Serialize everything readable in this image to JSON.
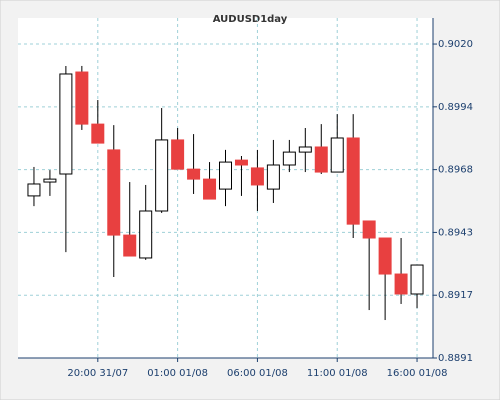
{
  "chart_data": {
    "type": "candlestick",
    "title": "AUDUSD1day",
    "categories": [
      null,
      null,
      null,
      null,
      "20:00 31/07",
      null,
      null,
      null,
      null,
      "01:00 01/08",
      null,
      null,
      null,
      null,
      "06:00 01/08",
      null,
      null,
      null,
      null,
      "11:00 01/08",
      null,
      null,
      null,
      null,
      "16:00 01/08"
    ],
    "open": [
      0.89576,
      0.89633,
      0.89666,
      0.90085,
      0.89871,
      0.89765,
      0.89415,
      0.89321,
      0.89514,
      0.89806,
      0.89686,
      0.89645,
      0.89604,
      0.89723,
      0.89691,
      0.89604,
      0.89703,
      0.89756,
      0.89777,
      0.89674,
      0.89814,
      0.89473,
      0.89403,
      0.89255,
      0.89173
    ],
    "high": [
      0.89695,
      0.89682,
      0.9011,
      0.9011,
      0.8997,
      0.89867,
      0.89633,
      0.89621,
      0.89937,
      0.89855,
      0.8983,
      0.89715,
      0.89765,
      0.8974,
      0.89765,
      0.89806,
      0.89806,
      0.89855,
      0.89871,
      0.89912,
      0.89912,
      0.89473,
      0.89403,
      0.89403,
      0.89292
    ],
    "low": [
      0.89534,
      0.89576,
      0.89345,
      0.89847,
      0.89793,
      0.89243,
      0.89329,
      0.89313,
      0.89506,
      0.89686,
      0.89584,
      0.89563,
      0.89534,
      0.89576,
      0.89514,
      0.89547,
      0.89674,
      0.89674,
      0.89666,
      0.89674,
      0.89403,
      0.89107,
      0.89066,
      0.89132,
      0.89115
    ],
    "close": [
      0.89625,
      0.89645,
      0.90077,
      0.89871,
      0.89793,
      0.89415,
      0.89329,
      0.89514,
      0.89806,
      0.89686,
      0.89645,
      0.89563,
      0.89715,
      0.89703,
      0.89621,
      0.89703,
      0.89756,
      0.89777,
      0.89674,
      0.89814,
      0.8946,
      0.89403,
      0.89255,
      0.89173,
      0.89292
    ],
    "up_color": "#ffffff",
    "down_color": "#e84040",
    "ylim": [
      0.8891,
      0.90307
    ],
    "yticks": [
      {
        "value": 0.8891,
        "label": "0.8891"
      },
      {
        "value": 0.89168,
        "label": "0.8917"
      },
      {
        "value": 0.89426,
        "label": "0.8943"
      },
      {
        "value": 0.89684,
        "label": "0.8968"
      },
      {
        "value": 0.89942,
        "label": "0.8994"
      },
      {
        "value": 0.902,
        "label": "0.9020"
      }
    ],
    "grid": true
  }
}
